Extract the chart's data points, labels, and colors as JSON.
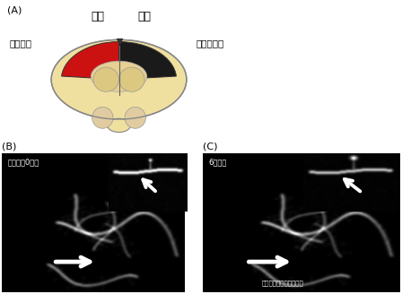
{
  "panel_A_label": "(A)",
  "panel_B_label": "(B)",
  "panel_C_label": "(C)",
  "title_left": "左脳",
  "title_right": "右脳",
  "label_observe": "観察部位",
  "label_infarct": "脳梗塞部位",
  "label_B": "観察開始0時間",
  "label_C": "6時間後",
  "label_synapse": "新たなシナプスができる",
  "brain_fill": "#f0e0a0",
  "brain_edge": "#888888",
  "red_region": "#cc1111",
  "dark_region": "#1a1a1a",
  "fig_width": 4.48,
  "fig_height": 3.28,
  "dpi": 100
}
